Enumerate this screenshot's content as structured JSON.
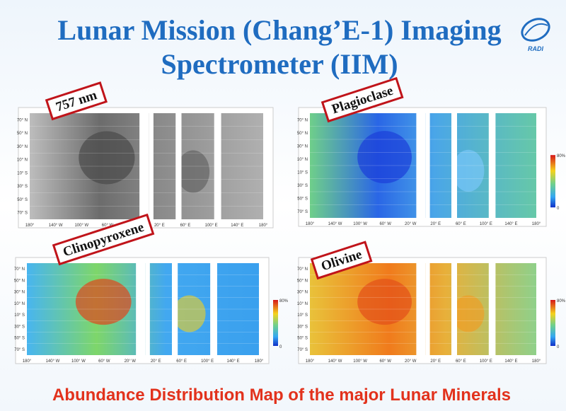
{
  "header": {
    "title_line1": "Lunar Mission (Chang’E-1) Imaging",
    "title_line2": "Spectrometer (IIM)",
    "logo": "RADI"
  },
  "panels": [
    {
      "label": "757 nm",
      "colorbar": false
    },
    {
      "label": "Plagioclase",
      "colorbar": true
    },
    {
      "label": "Clinopyroxene",
      "colorbar": true
    },
    {
      "label": "Olivine",
      "colorbar": true
    }
  ],
  "lon_ticks": [
    "180°",
    "140° W",
    "100° W",
    "60° W",
    "20° W",
    "20° E",
    "60° E",
    "100° E",
    "140° E",
    "180°"
  ],
  "lat_ticks": [
    "70° N",
    "50° N",
    "30° N",
    "10° N",
    "10° S",
    "30° S",
    "50° S",
    "70° S"
  ],
  "colorbar_labels": {
    "top": "80%",
    "bottom": "0"
  },
  "footer": "Abundance Distribution Map of the major Lunar Minerals"
}
